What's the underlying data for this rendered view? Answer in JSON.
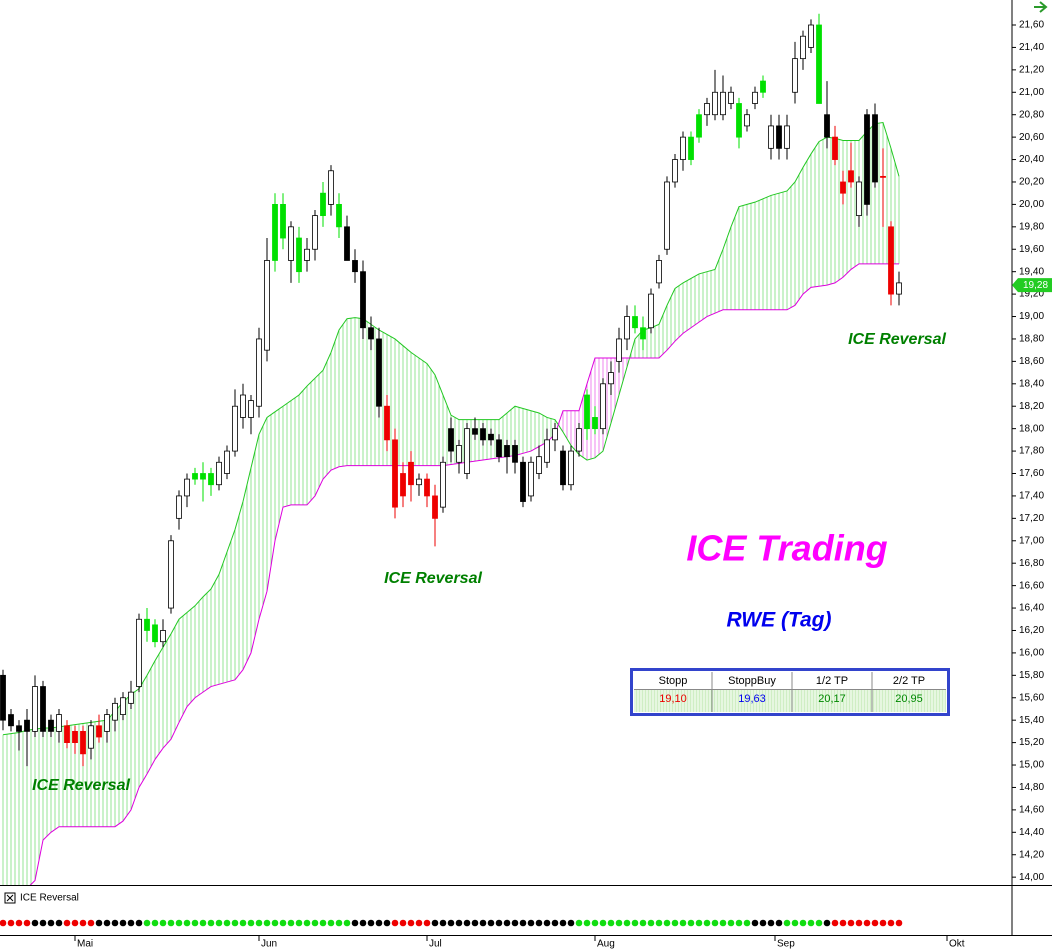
{
  "chart_data": {
    "type": "candlestick",
    "title": "ICE Trading",
    "subtitle": "RWE (Tag)",
    "annotations": [
      "ICE Reversal",
      "ICE Reversal",
      "ICE Reversal"
    ],
    "indicator_title": "ICE Reversal",
    "xlim": [
      -0.375,
      126.125
    ],
    "xticks": [
      {
        "value": 9,
        "label": "Mai"
      },
      {
        "value": 32,
        "label": "Jun"
      },
      {
        "value": 53,
        "label": "Jul"
      },
      {
        "value": 74,
        "label": "Aug"
      },
      {
        "value": 96.5,
        "label": "Sep"
      },
      {
        "value": 118,
        "label": "Okt"
      }
    ],
    "ylim": [
      13.93,
      21.823
    ],
    "yticks": [
      {
        "value": 14.0,
        "label": "14,00"
      },
      {
        "value": 14.2,
        "label": "14,20"
      },
      {
        "value": 14.4,
        "label": "14,40"
      },
      {
        "value": 14.6,
        "label": "14,60"
      },
      {
        "value": 14.8,
        "label": "14,80"
      },
      {
        "value": 15.0,
        "label": "15,00"
      },
      {
        "value": 15.2,
        "label": "15,20"
      },
      {
        "value": 15.4,
        "label": "15,40"
      },
      {
        "value": 15.6,
        "label": "15,60"
      },
      {
        "value": 15.8,
        "label": "15,80"
      },
      {
        "value": 16.0,
        "label": "16,00"
      },
      {
        "value": 16.2,
        "label": "16,20"
      },
      {
        "value": 16.4,
        "label": "16,40"
      },
      {
        "value": 16.6,
        "label": "16,60"
      },
      {
        "value": 16.8,
        "label": "16,80"
      },
      {
        "value": 17.0,
        "label": "17,00"
      },
      {
        "value": 17.2,
        "label": "17,20"
      },
      {
        "value": 17.4,
        "label": "17,40"
      },
      {
        "value": 17.6,
        "label": "17,60"
      },
      {
        "value": 17.8,
        "label": "17,80"
      },
      {
        "value": 18.0,
        "label": "18,00"
      },
      {
        "value": 18.2,
        "label": "18,20"
      },
      {
        "value": 18.4,
        "label": "18,40"
      },
      {
        "value": 18.6,
        "label": "18,60"
      },
      {
        "value": 18.8,
        "label": "18,80"
      },
      {
        "value": 19.0,
        "label": "19,00"
      },
      {
        "value": 19.2,
        "label": "19,20"
      },
      {
        "value": 19.4,
        "label": "19,40"
      },
      {
        "value": 19.6,
        "label": "19,60"
      },
      {
        "value": 19.8,
        "label": "19,80"
      },
      {
        "value": 20.0,
        "label": "20,00"
      },
      {
        "value": 20.2,
        "label": "20,20"
      },
      {
        "value": 20.4,
        "label": "20,40"
      },
      {
        "value": 20.6,
        "label": "20,60"
      },
      {
        "value": 20.8,
        "label": "20,80"
      },
      {
        "value": 21.0,
        "label": "21,00"
      },
      {
        "value": 21.2,
        "label": "21,20"
      },
      {
        "value": 21.4,
        "label": "21,40"
      },
      {
        "value": 21.6,
        "label": "21,60"
      }
    ],
    "last_price": {
      "value": 19.28,
      "label": "19,28"
    },
    "palette": {
      "g": "#00e000",
      "r": "#ee0000",
      "k": "#000000",
      "w": "#ffffff"
    },
    "ohlc": [
      [
        15.8,
        15.85,
        15.31,
        15.4
      ],
      [
        15.45,
        15.5,
        15.3,
        15.35
      ],
      [
        15.35,
        15.4,
        15.13,
        15.3
      ],
      [
        15.4,
        15.5,
        14.99,
        15.3
      ],
      [
        15.3,
        15.8,
        15.25,
        15.7
      ],
      [
        15.7,
        15.75,
        15.25,
        15.3
      ],
      [
        15.4,
        15.45,
        15.25,
        15.3
      ],
      [
        15.3,
        15.5,
        15.2,
        15.45
      ],
      [
        15.35,
        15.4,
        15.15,
        15.2
      ],
      [
        15.3,
        15.35,
        15.1,
        15.2
      ],
      [
        15.3,
        15.35,
        14.99,
        15.1
      ],
      [
        15.15,
        15.4,
        15.05,
        15.35
      ],
      [
        15.35,
        15.45,
        15.2,
        15.25
      ],
      [
        15.3,
        15.5,
        15.2,
        15.45
      ],
      [
        15.4,
        15.6,
        15.3,
        15.55
      ],
      [
        15.45,
        15.65,
        15.4,
        15.6
      ],
      [
        15.55,
        15.75,
        15.5,
        15.65
      ],
      [
        15.7,
        16.35,
        15.65,
        16.3
      ],
      [
        16.3,
        16.4,
        16.1,
        16.2
      ],
      [
        16.25,
        16.3,
        16.05,
        16.1
      ],
      [
        16.1,
        16.3,
        16.05,
        16.2
      ],
      [
        16.4,
        17.05,
        16.35,
        17.0
      ],
      [
        17.2,
        17.45,
        17.1,
        17.4
      ],
      [
        17.4,
        17.6,
        17.3,
        17.55
      ],
      [
        17.6,
        17.65,
        17.5,
        17.55
      ],
      [
        17.6,
        17.7,
        17.35,
        17.55
      ],
      [
        17.6,
        17.65,
        17.4,
        17.5
      ],
      [
        17.5,
        17.75,
        17.45,
        17.7
      ],
      [
        17.6,
        17.85,
        17.55,
        17.8
      ],
      [
        17.8,
        18.35,
        17.75,
        18.2
      ],
      [
        18.1,
        18.4,
        18.0,
        18.3
      ],
      [
        18.1,
        18.3,
        17.95,
        18.25
      ],
      [
        18.2,
        18.9,
        18.1,
        18.8
      ],
      [
        18.7,
        19.7,
        18.6,
        19.5
      ],
      [
        19.5,
        20.1,
        19.4,
        20.0
      ],
      [
        20.0,
        20.1,
        19.6,
        19.7
      ],
      [
        19.5,
        19.85,
        19.3,
        19.8
      ],
      [
        19.7,
        19.8,
        19.3,
        19.4
      ],
      [
        19.5,
        19.7,
        19.4,
        19.6
      ],
      [
        19.6,
        19.95,
        19.5,
        19.9
      ],
      [
        19.9,
        20.2,
        19.8,
        20.1
      ],
      [
        20.0,
        20.35,
        19.9,
        20.3
      ],
      [
        20.0,
        20.1,
        19.7,
        19.8
      ],
      [
        19.8,
        19.9,
        19.5,
        19.5
      ],
      [
        19.5,
        19.6,
        19.3,
        19.4
      ],
      [
        19.4,
        19.5,
        18.8,
        18.9
      ],
      [
        18.9,
        19.0,
        18.7,
        18.8
      ],
      [
        18.8,
        18.9,
        18.1,
        18.2
      ],
      [
        18.2,
        18.3,
        17.8,
        17.9
      ],
      [
        17.9,
        18.0,
        17.2,
        17.3
      ],
      [
        17.6,
        17.7,
        17.3,
        17.4
      ],
      [
        17.7,
        17.8,
        17.35,
        17.5
      ],
      [
        17.5,
        17.6,
        17.4,
        17.55
      ],
      [
        17.55,
        17.6,
        17.3,
        17.4
      ],
      [
        17.4,
        17.5,
        16.95,
        17.2
      ],
      [
        17.3,
        17.75,
        17.25,
        17.7
      ],
      [
        18.0,
        18.1,
        17.7,
        17.8
      ],
      [
        17.7,
        17.9,
        17.6,
        17.85
      ],
      [
        17.6,
        18.05,
        17.55,
        18.0
      ],
      [
        18.0,
        18.1,
        17.9,
        17.95
      ],
      [
        18.0,
        18.05,
        17.85,
        17.9
      ],
      [
        17.95,
        18.0,
        17.85,
        17.9
      ],
      [
        17.9,
        17.95,
        17.7,
        17.75
      ],
      [
        17.85,
        17.9,
        17.6,
        17.75
      ],
      [
        17.85,
        17.9,
        17.6,
        17.7
      ],
      [
        17.7,
        17.75,
        17.3,
        17.35
      ],
      [
        17.4,
        17.75,
        17.35,
        17.7
      ],
      [
        17.6,
        17.85,
        17.55,
        17.75
      ],
      [
        17.7,
        18.0,
        17.65,
        17.9
      ],
      [
        17.9,
        18.05,
        17.8,
        18.0
      ],
      [
        17.8,
        17.85,
        17.45,
        17.5
      ],
      [
        17.5,
        17.85,
        17.45,
        17.8
      ],
      [
        17.8,
        18.05,
        17.75,
        18.0
      ],
      [
        18.0,
        18.35,
        17.9,
        18.3
      ],
      [
        18.1,
        18.2,
        17.95,
        18.0
      ],
      [
        18.0,
        18.45,
        17.95,
        18.4
      ],
      [
        18.4,
        18.6,
        18.3,
        18.5
      ],
      [
        18.6,
        18.9,
        18.5,
        18.8
      ],
      [
        18.8,
        19.1,
        18.7,
        19.0
      ],
      [
        19.0,
        19.1,
        18.85,
        18.9
      ],
      [
        18.9,
        19.0,
        18.7,
        18.8
      ],
      [
        18.9,
        19.25,
        18.85,
        19.2
      ],
      [
        19.3,
        19.55,
        19.25,
        19.5
      ],
      [
        19.6,
        20.25,
        19.55,
        20.2
      ],
      [
        20.2,
        20.45,
        20.15,
        20.4
      ],
      [
        20.4,
        20.65,
        20.3,
        20.6
      ],
      [
        20.6,
        20.65,
        20.35,
        20.4
      ],
      [
        20.6,
        20.85,
        20.55,
        20.8
      ],
      [
        20.8,
        20.95,
        20.7,
        20.9
      ],
      [
        20.8,
        21.2,
        20.75,
        21.0
      ],
      [
        20.8,
        21.15,
        20.75,
        21.0
      ],
      [
        20.9,
        21.05,
        20.85,
        21.0
      ],
      [
        20.9,
        20.95,
        20.5,
        20.6
      ],
      [
        20.7,
        20.85,
        20.65,
        20.8
      ],
      [
        20.9,
        21.05,
        20.85,
        21.0
      ],
      [
        21.0,
        21.15,
        20.95,
        21.1
      ],
      [
        20.7,
        20.8,
        20.4,
        20.5
      ],
      [
        20.7,
        20.8,
        20.4,
        20.5
      ],
      [
        20.5,
        20.8,
        20.4,
        20.7
      ],
      [
        21.0,
        21.45,
        20.9,
        21.3
      ],
      [
        21.3,
        21.55,
        21.2,
        21.5
      ],
      [
        21.4,
        21.65,
        21.35,
        21.6
      ],
      [
        21.6,
        21.7,
        20.9,
        20.9
      ],
      [
        20.8,
        21.1,
        20.5,
        20.6
      ],
      [
        20.6,
        20.7,
        20.35,
        20.4
      ],
      [
        20.2,
        20.3,
        20.0,
        20.1
      ],
      [
        20.3,
        20.55,
        20.15,
        20.2
      ],
      [
        19.9,
        20.25,
        19.8,
        20.2
      ],
      [
        20.8,
        20.85,
        19.9,
        20.0
      ],
      [
        20.8,
        20.9,
        20.15,
        20.2
      ],
      [
        20.25,
        20.5,
        19.8,
        20.25
      ],
      [
        19.8,
        19.85,
        19.1,
        19.2
      ],
      [
        19.2,
        19.4,
        19.1,
        19.3
      ]
    ],
    "candle_colors": [
      "k",
      "k",
      "k",
      "k",
      "w",
      "k",
      "k",
      "w",
      "r",
      "r",
      "r",
      "w",
      "r",
      "w",
      "w",
      "w",
      "w",
      "w",
      "g",
      "g",
      "w",
      "w",
      "w",
      "w",
      "g",
      "g",
      "g",
      "w",
      "w",
      "w",
      "w",
      "w",
      "w",
      "w",
      "g",
      "g",
      "w",
      "g",
      "w",
      "w",
      "g",
      "w",
      "g",
      "k",
      "k",
      "k",
      "k",
      "k",
      "r",
      "r",
      "r",
      "r",
      "w",
      "r",
      "r",
      "w",
      "k",
      "w",
      "w",
      "k",
      "k",
      "k",
      "k",
      "k",
      "k",
      "k",
      "w",
      "w",
      "w",
      "w",
      "k",
      "w",
      "w",
      "g",
      "g",
      "w",
      "w",
      "w",
      "w",
      "g",
      "g",
      "w",
      "w",
      "w",
      "w",
      "w",
      "g",
      "g",
      "w",
      "w",
      "w",
      "w",
      "g",
      "w",
      "w",
      "g",
      "w",
      "k",
      "w",
      "w",
      "w",
      "w",
      "g",
      "k",
      "r",
      "r",
      "r",
      "w",
      "k",
      "k",
      "r",
      "r",
      "w"
    ],
    "cloud_upper": {
      "color": "#22c822",
      "values": [
        15.27,
        15.28,
        15.29,
        15.31,
        15.32,
        15.33,
        15.33,
        15.34,
        15.35,
        15.36,
        15.37,
        15.38,
        15.39,
        15.4,
        15.48,
        15.56,
        15.63,
        15.68,
        15.8,
        15.93,
        16.05,
        16.17,
        16.3,
        16.36,
        16.42,
        16.5,
        16.57,
        16.7,
        16.9,
        17.1,
        17.35,
        17.65,
        17.95,
        18.1,
        18.15,
        18.2,
        18.25,
        18.3,
        18.38,
        18.45,
        18.52,
        18.68,
        18.88,
        18.98,
        18.99,
        18.98,
        18.93,
        18.88,
        18.84,
        18.8,
        18.74,
        18.68,
        18.63,
        18.58,
        18.48,
        18.3,
        18.12,
        18.08,
        18.08,
        18.08,
        18.08,
        18.08,
        18.08,
        18.14,
        18.2,
        18.18,
        18.16,
        18.14,
        18.1,
        18.08,
        17.97,
        17.85,
        17.77,
        17.72,
        17.74,
        17.8,
        18.05,
        18.3,
        18.55,
        18.8,
        18.88,
        18.9,
        18.93,
        19.1,
        19.25,
        19.3,
        19.34,
        19.38,
        19.4,
        19.42,
        19.6,
        19.8,
        19.98,
        20.0,
        20.02,
        20.05,
        20.08,
        20.1,
        20.12,
        20.2,
        20.33,
        20.45,
        20.56,
        20.6,
        20.59,
        20.57,
        20.57,
        20.57,
        20.65,
        20.72,
        20.73,
        20.5,
        20.25
      ]
    },
    "cloud_lower": {
      "color": "#dd00dd",
      "values": [
        13.6,
        13.7,
        13.8,
        13.9,
        13.97,
        14.33,
        14.4,
        14.45,
        14.45,
        14.45,
        14.45,
        14.45,
        14.45,
        14.45,
        14.45,
        14.5,
        14.6,
        14.8,
        14.92,
        15.05,
        15.15,
        15.23,
        15.38,
        15.52,
        15.6,
        15.65,
        15.7,
        15.72,
        15.74,
        15.76,
        15.85,
        16.0,
        16.3,
        16.55,
        17.0,
        17.3,
        17.32,
        17.32,
        17.32,
        17.4,
        17.55,
        17.63,
        17.66,
        17.67,
        17.67,
        17.67,
        17.67,
        17.67,
        17.67,
        17.67,
        17.67,
        17.67,
        17.67,
        17.67,
        17.67,
        17.67,
        17.68,
        17.69,
        17.7,
        17.71,
        17.72,
        17.73,
        17.74,
        17.75,
        17.76,
        17.78,
        17.8,
        17.84,
        17.88,
        17.95,
        18.16,
        18.16,
        18.16,
        18.4,
        18.63,
        18.63,
        18.63,
        18.63,
        18.63,
        18.63,
        18.63,
        18.63,
        18.63,
        18.7,
        18.78,
        18.85,
        18.9,
        18.95,
        19.0,
        19.03,
        19.06,
        19.06,
        19.06,
        19.06,
        19.06,
        19.06,
        19.06,
        19.06,
        19.06,
        19.1,
        19.2,
        19.26,
        19.27,
        19.28,
        19.3,
        19.35,
        19.42,
        19.47,
        19.47,
        19.47,
        19.47,
        19.47,
        19.47
      ]
    },
    "signal_palette": {
      "g": "#11dd11",
      "r": "#ee0000",
      "k": "#000000"
    },
    "signals": [
      "r",
      "r",
      "r",
      "r",
      "k",
      "k",
      "k",
      "k",
      "r",
      "r",
      "r",
      "r",
      "k",
      "k",
      "k",
      "k",
      "k",
      "k",
      "g",
      "g",
      "g",
      "g",
      "g",
      "g",
      "g",
      "g",
      "g",
      "g",
      "g",
      "g",
      "g",
      "g",
      "g",
      "g",
      "g",
      "g",
      "g",
      "g",
      "g",
      "g",
      "g",
      "g",
      "g",
      "g",
      "k",
      "k",
      "k",
      "k",
      "k",
      "r",
      "r",
      "r",
      "r",
      "r",
      "k",
      "k",
      "k",
      "k",
      "k",
      "k",
      "k",
      "k",
      "k",
      "k",
      "k",
      "k",
      "k",
      "k",
      "k",
      "k",
      "k",
      "k",
      "g",
      "g",
      "g",
      "g",
      "g",
      "g",
      "g",
      "g",
      "g",
      "g",
      "g",
      "g",
      "g",
      "g",
      "g",
      "g",
      "g",
      "g",
      "g",
      "g",
      "g",
      "g",
      "k",
      "k",
      "k",
      "k",
      "g",
      "g",
      "g",
      "g",
      "g",
      "k",
      "r",
      "r",
      "r",
      "r",
      "r",
      "r",
      "r",
      "r",
      "r"
    ],
    "table": {
      "headers": [
        "Stopp",
        "StoppBuy",
        "1/2 TP",
        "2/2 TP"
      ],
      "cells": [
        "19,10",
        "19,63",
        "20,17",
        "20,95"
      ],
      "cell_colors": [
        "#ee0000",
        "#0000ee",
        "#008800",
        "#008800"
      ]
    }
  }
}
